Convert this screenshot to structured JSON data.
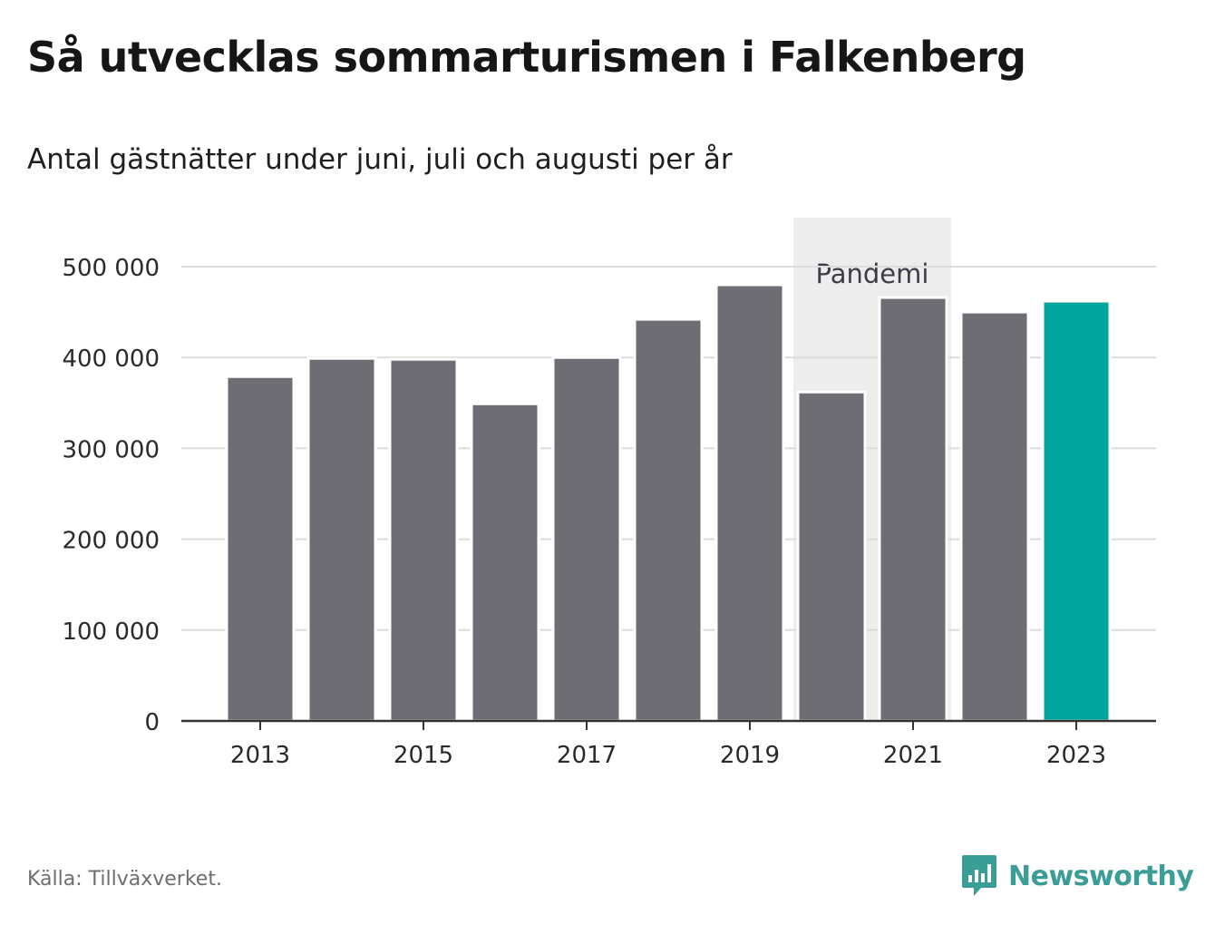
{
  "header": {
    "title": "Så utvecklas sommarturismen i Falkenberg",
    "subtitle": "Antal gästnätter under juni, juli och augusti per år"
  },
  "footer": {
    "source": "Källa: Tillväxverket.",
    "logo_text": "Newsworthy",
    "logo_icon": "chart-bubble-icon"
  },
  "colors": {
    "bar": "#6e6d73",
    "highlight": "#00a69c",
    "band": "#ededed",
    "grid": "#dcdcdc",
    "axis": "#333333",
    "brand": "#3a9d96"
  },
  "chart_data": {
    "type": "bar",
    "categories": [
      "2013",
      "2014",
      "2015",
      "2016",
      "2017",
      "2018",
      "2019",
      "2020",
      "2021",
      "2022",
      "2023"
    ],
    "values": [
      379000,
      399000,
      398000,
      349000,
      400000,
      442000,
      480000,
      362000,
      466000,
      450000,
      462000
    ],
    "highlight_category": "2023",
    "ylim": [
      0,
      500000
    ],
    "y_ticks": [
      0,
      100000,
      200000,
      300000,
      400000,
      500000
    ],
    "y_tick_labels": [
      "0",
      "100 000",
      "200 000",
      "300 000",
      "400 000",
      "500 000"
    ],
    "x_tick_labels": [
      "2013",
      "2015",
      "2017",
      "2019",
      "2021",
      "2023"
    ],
    "grid": true,
    "annotations": [
      {
        "type": "band",
        "label": "Pandemi",
        "from": "2020",
        "to": "2021"
      }
    ]
  }
}
